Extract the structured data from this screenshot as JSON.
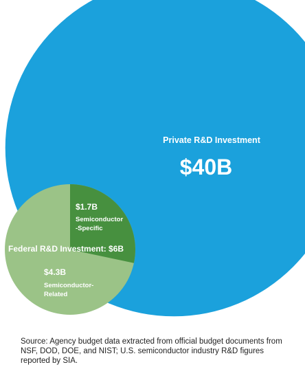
{
  "chart_data": {
    "type": "bubble",
    "units": "USD billions",
    "bubbles": [
      {
        "label": "Private R&D Investment",
        "value_label": "$40B",
        "value": 40,
        "color": "#1ba1dc"
      },
      {
        "label": "Federal R&D Investment: $6B",
        "value": 6,
        "color": "#9bc387",
        "slices": [
          {
            "value_label": "$1.7B",
            "name_lines": [
              "Semiconductor",
              "-Specific"
            ],
            "value": 1.7,
            "color": "#47903f"
          },
          {
            "value_label": "$4.3B",
            "name_lines": [
              "Semiconductor-",
              "Related"
            ],
            "value": 4.3,
            "color": "#9bc387"
          }
        ]
      }
    ]
  },
  "source_note": "Source: Agency budget data extracted from official budget documents from NSF, DOD, DOE, and NIST; U.S. semiconductor industry R&D figures reported by SIA."
}
